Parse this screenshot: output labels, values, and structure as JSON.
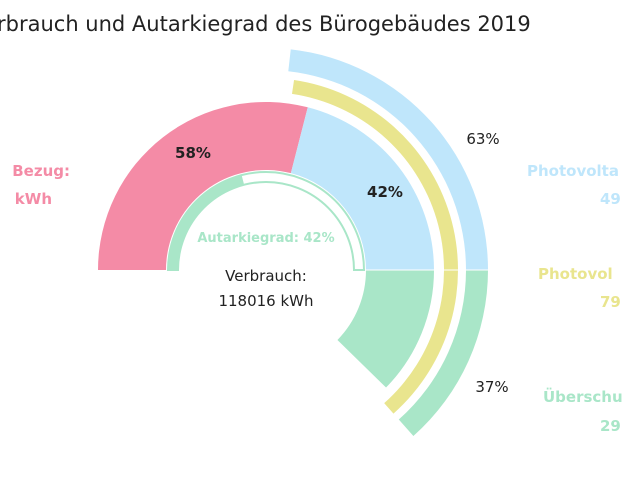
{
  "colors": {
    "grid_purchase": "#f48ba6",
    "pv_self_use": "#bfe6fb",
    "pv_production": "#e9e58e",
    "surplus": "#a9e6c8",
    "autarky": "#a9e6c8",
    "text": "#222222"
  },
  "chart_data": {
    "type": "pie",
    "title": "rbrauch und Autarkiegrad des Bürogebäudes 2019",
    "consumption": {
      "label_line1": "Verbrauch:",
      "label_line2": "118016 kWh",
      "value_kwh": 118016,
      "slices": [
        {
          "key": "grid_purchase",
          "percent": 58,
          "label": "58%"
        },
        {
          "key": "pv_self_use",
          "percent": 42,
          "label": "42%"
        }
      ]
    },
    "autarky": {
      "label": "Autarkiegrad: 42%",
      "percent": 42
    },
    "pv_production_ring": {
      "slices": [
        {
          "key": "pv_self_use",
          "percent": 63,
          "label": "63%"
        },
        {
          "key": "surplus",
          "percent": 37,
          "label": "37%"
        }
      ]
    },
    "side_labels": {
      "left": [
        {
          "text": "Bezug:",
          "color_key": "grid_purchase"
        },
        {
          "text": "kWh",
          "color_key": "grid_purchase"
        }
      ],
      "right": [
        {
          "text": "Photovolta",
          "color_key": "pv_self_use"
        },
        {
          "text": "49",
          "color_key": "pv_self_use"
        },
        {
          "text": "Photovol",
          "color_key": "pv_production"
        },
        {
          "text": "79",
          "color_key": "pv_production"
        },
        {
          "text": "Überschu",
          "color_key": "surplus"
        },
        {
          "text": "29",
          "color_key": "surplus"
        }
      ]
    }
  }
}
